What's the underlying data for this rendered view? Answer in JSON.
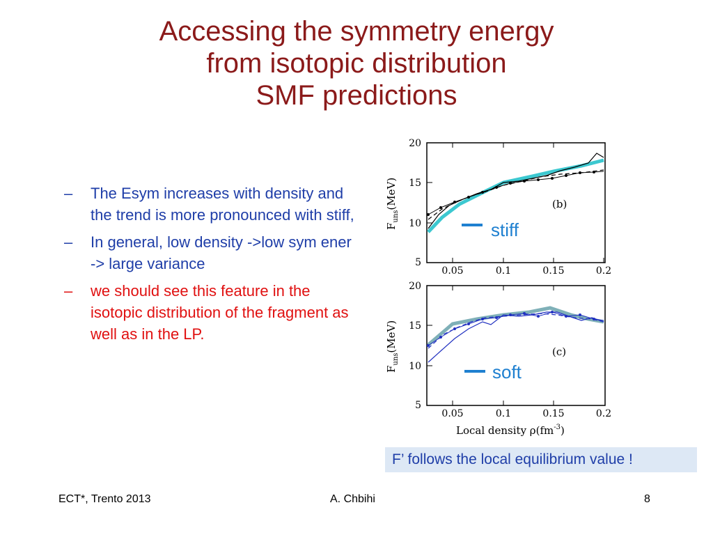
{
  "title": {
    "line1": "Accessing the symmetry energy",
    "line2": "from isotopic distribution",
    "line3": "SMF predictions"
  },
  "bullets": [
    {
      "dash": "–",
      "text": "The Esym increases with density and the trend is more pronounced with stiff,",
      "color": "#1f3ea8"
    },
    {
      "dash": "–",
      "text": "In general, low density ->low sym ener -> large variance",
      "color": "#1f3ea8"
    },
    {
      "dash": "–",
      "text": "we should see this feature in the isotopic distribution of the fragment as well as in the LP.",
      "color": "#e01010"
    }
  ],
  "figure": {
    "ylabel_main": "F",
    "ylabel_sub": "uns",
    "ylabel_unit": "(MeV)",
    "xlabel": "Local density ρ(fm",
    "xlabel_sup": "-3",
    "xlabel_end": ")",
    "yticks": [
      "5",
      "10",
      "15",
      "20"
    ],
    "xticks": [
      "0.05",
      "0.1",
      "0.15",
      "0.2"
    ],
    "top_panel": {
      "label": "(b)",
      "legend": "stiff"
    },
    "bottom_panel": {
      "label": "(c)",
      "legend": "soft"
    }
  },
  "callout": "F’ follows the local equilibrium value !",
  "footer": {
    "left": "ECT*, Trento 2013",
    "center": "A. Chbihi",
    "right": "8"
  }
}
